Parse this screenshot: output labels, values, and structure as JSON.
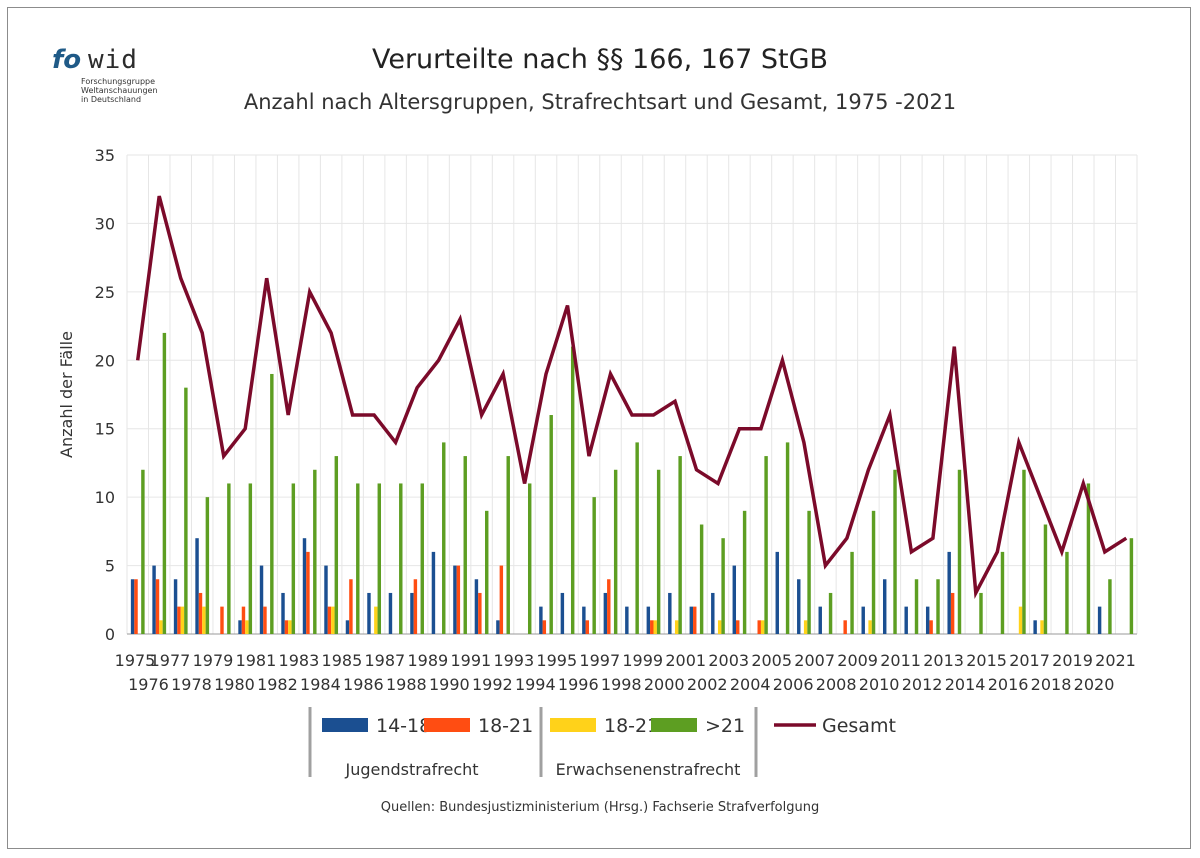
{
  "logo": {
    "mark_fo": "fo",
    "mark_wid": "wid",
    "line1": "Forschungsgruppe",
    "line2": "Weltanschauungen",
    "line3": "in Deutschland"
  },
  "source": "Quellen: Bundesjustizministerium (Hrsg.) Fachserie Strafverfolgung",
  "colors": {
    "s14_18": "#1b4f91",
    "s18_21_jug": "#ff4d12",
    "s18_21_erw": "#ffd21a",
    "s21plus": "#5d9e22",
    "gesamt": "#7b0a2a",
    "grid": "#e6e6e6"
  },
  "chart_data": {
    "type": "bar",
    "title": "Verurteilte nach §§ 166, 167 StGB",
    "subtitle": "Anzahl nach Altersgruppen, Strafrechtsart und Gesamt, 1975 -2021",
    "ylabel": "Anzahl der Fälle",
    "xlabel": "",
    "ylim": [
      0,
      35
    ],
    "yticks": [
      0,
      5,
      10,
      15,
      20,
      25,
      30,
      35
    ],
    "grid": true,
    "legend_position": "bottom",
    "legend_groups": [
      {
        "label": "Jugendstrafrecht",
        "series": [
          0,
          1
        ]
      },
      {
        "label": "Erwachsenenstrafrecht",
        "series": [
          2,
          3
        ]
      }
    ],
    "categories": [
      "1975",
      "1976",
      "1977",
      "1978",
      "1979",
      "1980",
      "1981",
      "1982",
      "1983",
      "1984",
      "1985",
      "1986",
      "1987",
      "1988",
      "1989",
      "1990",
      "1991",
      "1992",
      "1993",
      "1994",
      "1995",
      "1996",
      "1997",
      "1998",
      "1999",
      "2000",
      "2001",
      "2002",
      "2003",
      "2004",
      "2005",
      "2006",
      "2007",
      "2008",
      "2009",
      "2010",
      "2011",
      "2012",
      "2013",
      "2014",
      "2015",
      "2016",
      "2017",
      "2018",
      "2019",
      "2020",
      "2021"
    ],
    "series": [
      {
        "name": "14-18",
        "type": "bar",
        "values": [
          4,
          5,
          4,
          7,
          0,
          1,
          5,
          3,
          7,
          5,
          1,
          3,
          3,
          3,
          6,
          5,
          4,
          1,
          0,
          2,
          3,
          2,
          3,
          2,
          2,
          3,
          2,
          3,
          5,
          0,
          6,
          4,
          2,
          0,
          2,
          4,
          2,
          2,
          6,
          0,
          0,
          0,
          1,
          0,
          0,
          2,
          0
        ]
      },
      {
        "name": "18-21",
        "type": "bar",
        "values": [
          4,
          4,
          2,
          3,
          2,
          2,
          2,
          1,
          6,
          2,
          4,
          0,
          0,
          4,
          0,
          5,
          3,
          5,
          0,
          1,
          0,
          1,
          4,
          0,
          1,
          0,
          2,
          0,
          1,
          1,
          0,
          0,
          0,
          1,
          0,
          0,
          0,
          1,
          3,
          0,
          0,
          0,
          0,
          0,
          0,
          0,
          0
        ]
      },
      {
        "name": "18-21",
        "type": "bar",
        "values": [
          0,
          1,
          2,
          2,
          0,
          1,
          0,
          1,
          0,
          2,
          0,
          2,
          0,
          0,
          0,
          0,
          0,
          0,
          0,
          0,
          0,
          0,
          0,
          0,
          1,
          1,
          0,
          1,
          0,
          1,
          0,
          1,
          0,
          0,
          1,
          0,
          0,
          0,
          0,
          0,
          0,
          2,
          1,
          0,
          0,
          0,
          0
        ]
      },
      {
        "name": ">21",
        "type": "bar",
        "values": [
          12,
          22,
          18,
          10,
          11,
          11,
          19,
          11,
          12,
          13,
          11,
          11,
          11,
          11,
          14,
          13,
          9,
          13,
          11,
          16,
          21,
          10,
          12,
          14,
          12,
          13,
          8,
          7,
          9,
          13,
          14,
          9,
          3,
          6,
          9,
          12,
          4,
          4,
          12,
          3,
          6,
          12,
          8,
          6,
          11,
          4,
          7
        ]
      },
      {
        "name": "Gesamt",
        "type": "line",
        "values": [
          20,
          32,
          26,
          22,
          13,
          15,
          26,
          16,
          25,
          22,
          16,
          16,
          14,
          18,
          20,
          23,
          16,
          19,
          11,
          19,
          24,
          13,
          19,
          16,
          16,
          17,
          12,
          11,
          15,
          15,
          20,
          14,
          5,
          7,
          12,
          16,
          6,
          7,
          21,
          3,
          6,
          14,
          10,
          6,
          11,
          6,
          7
        ]
      }
    ]
  }
}
